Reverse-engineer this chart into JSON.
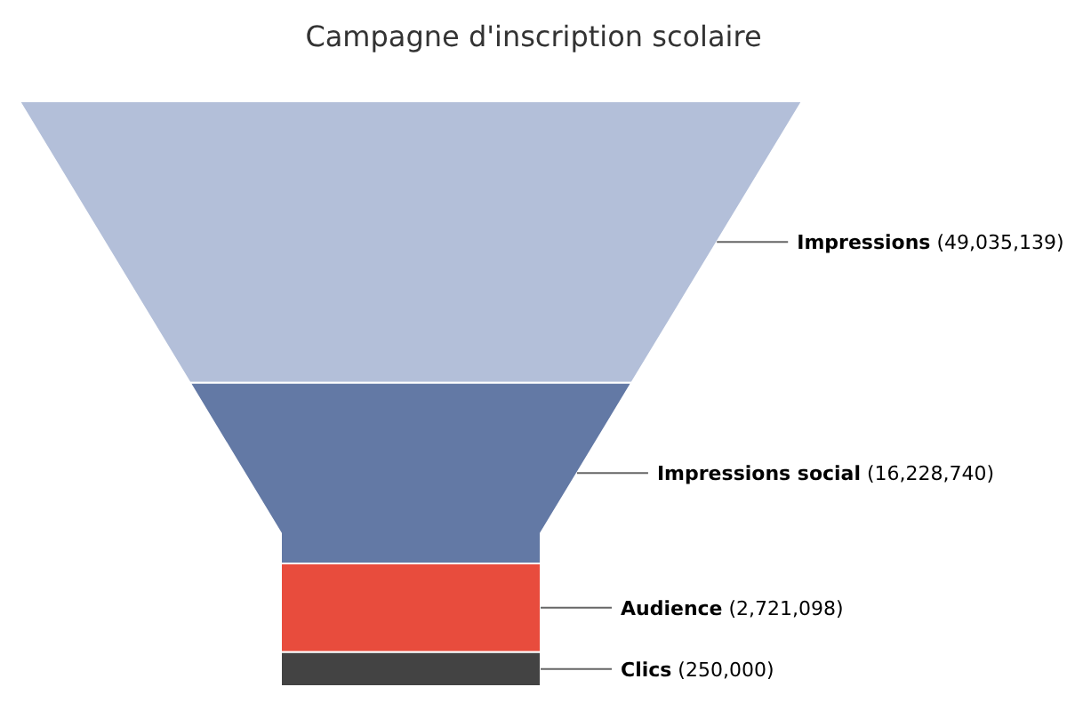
{
  "chart_data": {
    "type": "other",
    "title": "Campagne d'inscription scolaire",
    "categories": [
      "Impressions",
      "Impressions social",
      "Audience",
      "Clics"
    ],
    "values": [
      49035139,
      16228740,
      2721098,
      250000
    ],
    "colors": [
      "#b3bfd9",
      "#6379a5",
      "#e84c3d",
      "#434343"
    ],
    "value_labels": [
      "(49,035,139)",
      "(16,228,740)",
      "(2,721,098)",
      "(250,000)"
    ]
  }
}
